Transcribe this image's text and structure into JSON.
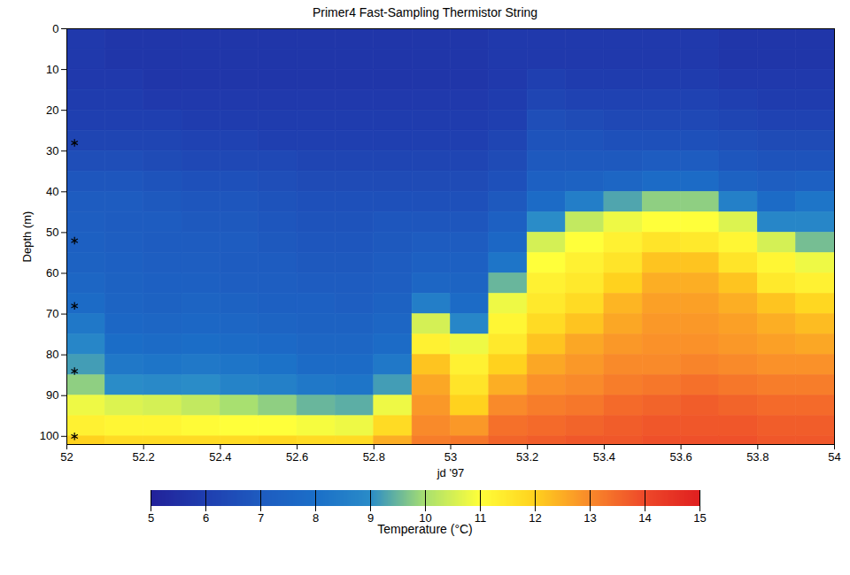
{
  "chart_data": {
    "type": "heatmap",
    "title": "Primer4  Fast-Sampling Thermistor String",
    "x_label": "jd '97",
    "y_label": "Depth (m)",
    "xlim": [
      52,
      54
    ],
    "xticks": [
      52,
      52.2,
      52.4,
      52.6,
      52.8,
      53,
      53.2,
      53.4,
      53.6,
      53.8,
      54
    ],
    "ylim": [
      102,
      0
    ],
    "yticks": [
      0,
      10,
      20,
      30,
      40,
      50,
      60,
      70,
      80,
      90,
      100
    ],
    "legend": "bottom",
    "x_edges": [
      52,
      52.1,
      52.2,
      52.3,
      52.4,
      52.5,
      52.6,
      52.7,
      52.8,
      52.9,
      53,
      53.1,
      53.2,
      53.3,
      53.4,
      53.5,
      53.6,
      53.7,
      53.8,
      53.9,
      54
    ],
    "depth_edges": [
      0,
      5,
      10,
      15,
      20,
      25,
      30,
      35,
      40,
      45,
      50,
      55,
      60,
      65,
      70,
      75,
      80,
      85,
      90,
      95,
      100,
      102
    ],
    "cells": [
      [
        5.8,
        5.8,
        5.8,
        5.9,
        6.0,
        6.2,
        6.5,
        6.8,
        7.0,
        7.1,
        7.2,
        7.3,
        7.5,
        7.8,
        8.3,
        8.8,
        9.2,
        9.8,
        10.8,
        11.3,
        12.0
      ],
      [
        5.7,
        5.7,
        5.8,
        5.9,
        6.0,
        6.2,
        6.5,
        6.8,
        7.0,
        7.0,
        7.1,
        7.2,
        7.3,
        7.4,
        7.6,
        7.9,
        8.3,
        9.0,
        10.6,
        11.2,
        11.8
      ],
      [
        5.7,
        5.7,
        5.7,
        5.8,
        6.0,
        6.2,
        6.4,
        6.7,
        6.9,
        7.0,
        7.0,
        7.1,
        7.2,
        7.3,
        7.5,
        7.8,
        8.2,
        8.9,
        10.5,
        11.2,
        11.8
      ],
      [
        5.7,
        5.7,
        5.7,
        5.8,
        5.9,
        6.1,
        6.3,
        6.6,
        6.8,
        6.9,
        7.0,
        7.1,
        7.2,
        7.4,
        7.6,
        7.9,
        8.3,
        9.0,
        10.3,
        11.1,
        11.8
      ],
      [
        5.7,
        5.7,
        5.7,
        5.8,
        5.9,
        6.1,
        6.3,
        6.6,
        6.8,
        6.9,
        7.0,
        7.0,
        7.1,
        7.3,
        7.5,
        7.8,
        8.2,
        8.7,
        10.0,
        11.0,
        11.8
      ],
      [
        5.7,
        5.7,
        5.7,
        5.8,
        5.9,
        6.0,
        6.3,
        6.5,
        6.7,
        6.8,
        6.9,
        7.0,
        7.1,
        7.2,
        7.4,
        7.7,
        8.1,
        8.6,
        9.8,
        11.0,
        11.9
      ],
      [
        5.7,
        5.7,
        5.7,
        5.8,
        5.9,
        6.0,
        6.2,
        6.4,
        6.6,
        6.7,
        6.8,
        6.9,
        7.0,
        7.2,
        7.3,
        7.5,
        7.8,
        8.3,
        9.5,
        10.9,
        11.8
      ],
      [
        5.7,
        5.7,
        5.7,
        5.8,
        5.9,
        6.0,
        6.2,
        6.4,
        6.6,
        6.7,
        6.8,
        6.9,
        7.0,
        7.1,
        7.3,
        7.5,
        7.8,
        8.2,
        9.4,
        10.8,
        11.8
      ],
      [
        5.7,
        5.7,
        5.7,
        5.8,
        5.9,
        6.0,
        6.2,
        6.4,
        6.6,
        6.8,
        6.9,
        7.0,
        7.1,
        7.3,
        7.5,
        7.8,
        8.3,
        9.2,
        10.8,
        11.8,
        12.5
      ],
      [
        5.7,
        5.7,
        5.7,
        5.8,
        5.9,
        6.0,
        6.2,
        6.4,
        6.6,
        6.8,
        7.0,
        7.2,
        7.5,
        8.5,
        10.5,
        11.3,
        12.2,
        12.6,
        12.8,
        13.0,
        13.2
      ],
      [
        5.7,
        5.7,
        5.7,
        5.8,
        5.9,
        6.0,
        6.2,
        6.4,
        6.6,
        6.8,
        7.0,
        7.2,
        7.4,
        7.8,
        8.8,
        10.8,
        11.3,
        11.6,
        12.0,
        12.8,
        13.3
      ],
      [
        5.8,
        5.8,
        5.8,
        5.9,
        6.0,
        6.2,
        6.4,
        6.6,
        6.9,
        7.2,
        7.6,
        8.2,
        9.5,
        10.8,
        11.2,
        11.5,
        12.0,
        12.5,
        13.0,
        13.4,
        13.6
      ],
      [
        5.8,
        5.8,
        6.0,
        6.2,
        6.5,
        6.7,
        6.9,
        7.2,
        7.8,
        9.0,
        10.5,
        11.0,
        11.3,
        11.5,
        11.8,
        12.2,
        12.6,
        12.9,
        13.2,
        13.5,
        13.7
      ],
      [
        5.8,
        5.8,
        5.9,
        6.1,
        6.4,
        6.7,
        6.9,
        7.3,
        8.5,
        10.3,
        11.0,
        11.3,
        11.5,
        11.8,
        12.2,
        12.6,
        12.8,
        13.0,
        13.3,
        13.6,
        13.8
      ],
      [
        5.8,
        5.8,
        5.9,
        6.1,
        6.3,
        6.6,
        6.9,
        7.5,
        9.3,
        10.8,
        11.3,
        11.6,
        12.0,
        12.4,
        12.6,
        12.8,
        13.0,
        13.2,
        13.5,
        13.7,
        13.8
      ],
      [
        5.8,
        5.8,
        5.9,
        6.1,
        6.3,
        6.6,
        7.0,
        7.8,
        9.8,
        11.0,
        11.6,
        12.2,
        12.5,
        12.7,
        12.8,
        12.9,
        13.0,
        13.3,
        13.6,
        13.8,
        13.9
      ],
      [
        5.8,
        5.8,
        5.9,
        6.1,
        6.3,
        6.6,
        7.0,
        7.8,
        9.8,
        11.0,
        11.5,
        12.2,
        12.5,
        12.7,
        12.8,
        12.9,
        13.1,
        13.4,
        13.7,
        13.8,
        13.9
      ],
      [
        5.7,
        5.7,
        5.8,
        6.0,
        6.2,
        6.5,
        6.8,
        7.3,
        8.6,
        10.6,
        11.2,
        11.6,
        12.2,
        12.5,
        12.7,
        12.8,
        13.0,
        13.3,
        13.6,
        13.8,
        13.9
      ],
      [
        5.7,
        5.7,
        5.8,
        5.9,
        6.1,
        6.4,
        6.7,
        7.1,
        7.8,
        8.8,
        10.5,
        11.2,
        11.5,
        12.2,
        12.5,
        12.7,
        12.9,
        13.2,
        13.5,
        13.7,
        13.8
      ],
      [
        5.7,
        5.7,
        5.8,
        5.9,
        6.1,
        6.4,
        6.7,
        7.2,
        8.2,
        8.8,
        9.6,
        10.8,
        11.3,
        11.9,
        12.3,
        12.6,
        12.9,
        13.2,
        13.5,
        13.7,
        13.8
      ]
    ],
    "sensor_x": 52.02,
    "sensor_depths": [
      28,
      52,
      68,
      84,
      100
    ],
    "marker": "asterisk",
    "colorbar": {
      "label": "Temperature (°C)",
      "range": [
        5,
        15
      ],
      "ticks": [
        5,
        6,
        7,
        8,
        9,
        10,
        11,
        12,
        13,
        14,
        15
      ],
      "colors": [
        "#22229a",
        "#1f3fb0",
        "#1e5cc0",
        "#1b6fc8",
        "#2a8cc8",
        "#a8e070",
        "#ffff3a",
        "#ffd21e",
        "#f98a2a",
        "#ee4a2a",
        "#e02020"
      ]
    }
  }
}
